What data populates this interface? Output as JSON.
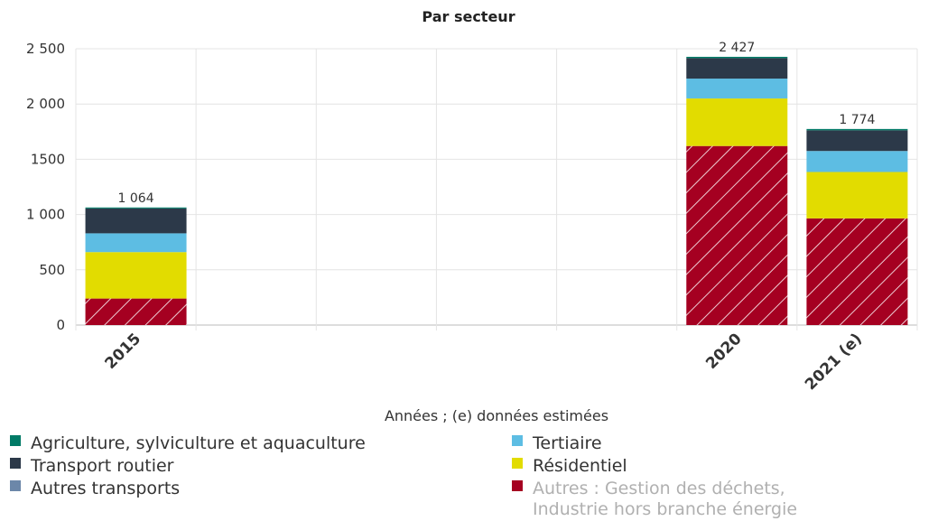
{
  "chart_data": {
    "type": "bar",
    "stacked": true,
    "title": "Par secteur",
    "xlabel": "Années ; (e) données estimées",
    "ylabel": "",
    "ylim": [
      0,
      2500
    ],
    "yticks": [
      0,
      500,
      1000,
      1500,
      2000,
      2500
    ],
    "ytick_labels": [
      "0",
      "500",
      "1 000",
      "1500",
      "2 000",
      "2 500"
    ],
    "categories": [
      "2015",
      "2020",
      "2021 (e)"
    ],
    "category_positions": [
      2015,
      2020,
      2021
    ],
    "xlim": [
      2014.5,
      2021.5
    ],
    "totals": [
      1064,
      2427,
      1774
    ],
    "total_labels": [
      "1 064",
      "2 427",
      "1 774"
    ],
    "grid": true,
    "legend_position": "bottom",
    "series": [
      {
        "name": "Autres : Gestion des déchets, Industrie hors branche énergie",
        "values": [
          240,
          1620,
          965
        ],
        "color": "#a50021",
        "hatched": true
      },
      {
        "name": "Résidentiel",
        "values": [
          420,
          430,
          420
        ],
        "color": "#e2dc00",
        "hatched": false
      },
      {
        "name": "Tertiaire",
        "values": [
          170,
          180,
          190
        ],
        "color": "#5dbde3",
        "hatched": false
      },
      {
        "name": "Autres transports",
        "values": [
          0,
          0,
          0
        ],
        "color": "#6c87a9",
        "hatched": false
      },
      {
        "name": "Transport routier",
        "values": [
          225,
          185,
          187
        ],
        "color": "#2c3949",
        "hatched": false
      },
      {
        "name": "Agriculture, sylviculture et aquaculture",
        "values": [
          9,
          12,
          12
        ],
        "color": "#007a66",
        "hatched": false
      }
    ],
    "legend": {
      "left": [
        "Agriculture, sylviculture et aquaculture",
        "Transport routier",
        "Autres transports"
      ],
      "right": [
        "Tertiaire",
        "Résidentiel",
        "Autres : Gestion des déchets, Industrie hors branche énergie"
      ],
      "muted": [
        "Autres : Gestion des déchets, Industrie hors branche énergie"
      ]
    }
  }
}
